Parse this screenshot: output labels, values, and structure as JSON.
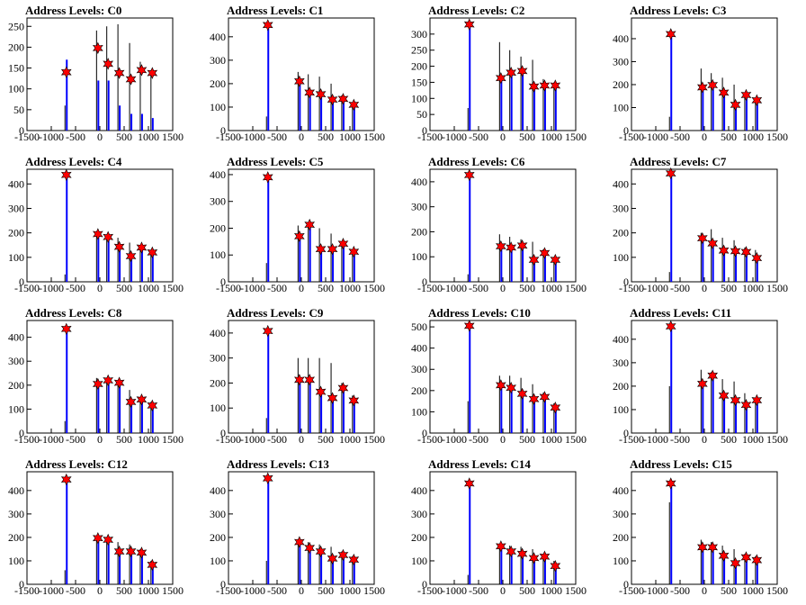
{
  "colors": {
    "primary_histogram": "#0000ff",
    "secondary_histogram": "#000000",
    "peak_marker": "#ff0000",
    "marker_outline": "#000000"
  },
  "chart_data": [
    {
      "type": "bar",
      "title": "Address Levels: C0",
      "xlim": [
        -1500,
        1500
      ],
      "ylim": [
        0,
        270
      ],
      "yticks": [
        0,
        50,
        100,
        150,
        200,
        250
      ],
      "xticks": [
        -1500,
        -1000,
        -500,
        0,
        500,
        1000,
        1500
      ],
      "peaks": [
        {
          "x": -690,
          "y": 140,
          "black": 60,
          "blue": 170
        },
        {
          "x": -40,
          "y": 198,
          "black": 240,
          "blue": 120
        },
        {
          "x": 170,
          "y": 160,
          "black": 250,
          "blue": 120
        },
        {
          "x": 400,
          "y": 138,
          "black": 255,
          "blue": 60
        },
        {
          "x": 640,
          "y": 123,
          "black": 210,
          "blue": 40
        },
        {
          "x": 860,
          "y": 145,
          "black": 165,
          "blue": 40
        },
        {
          "x": 1080,
          "y": 138,
          "black": 145,
          "blue": 30
        }
      ]
    },
    {
      "type": "bar",
      "title": "Address Levels: C1",
      "xlim": [
        -1500,
        1500
      ],
      "ylim": [
        0,
        480
      ],
      "yticks": [
        0,
        100,
        200,
        300,
        400
      ],
      "xticks": [
        -1500,
        -1000,
        -500,
        0,
        500,
        1000,
        1500
      ],
      "peaks": [
        {
          "x": -690,
          "y": 450,
          "black": 60,
          "blue": 450
        },
        {
          "x": -40,
          "y": 210,
          "black": 250,
          "blue": 210
        },
        {
          "x": 170,
          "y": 162,
          "black": 240,
          "blue": 160
        },
        {
          "x": 400,
          "y": 155,
          "black": 230,
          "blue": 155
        },
        {
          "x": 640,
          "y": 132,
          "black": 200,
          "blue": 130
        },
        {
          "x": 860,
          "y": 135,
          "black": 150,
          "blue": 135
        },
        {
          "x": 1080,
          "y": 110,
          "black": 120,
          "blue": 110
        }
      ]
    },
    {
      "type": "bar",
      "title": "Address Levels: C2",
      "xlim": [
        -1500,
        1500
      ],
      "ylim": [
        0,
        350
      ],
      "yticks": [
        0,
        50,
        100,
        150,
        200,
        250,
        300
      ],
      "xticks": [
        -1500,
        -1000,
        -500,
        0,
        500,
        1000,
        1500
      ],
      "peaks": [
        {
          "x": -690,
          "y": 330,
          "black": 70,
          "blue": 330
        },
        {
          "x": -40,
          "y": 163,
          "black": 275,
          "blue": 163
        },
        {
          "x": 170,
          "y": 180,
          "black": 250,
          "blue": 180
        },
        {
          "x": 400,
          "y": 185,
          "black": 230,
          "blue": 185
        },
        {
          "x": 640,
          "y": 137,
          "black": 220,
          "blue": 137
        },
        {
          "x": 860,
          "y": 140,
          "black": 160,
          "blue": 140
        },
        {
          "x": 1080,
          "y": 140,
          "black": 150,
          "blue": 140
        }
      ]
    },
    {
      "type": "bar",
      "title": "Address Levels: C3",
      "xlim": [
        -1500,
        1500
      ],
      "ylim": [
        0,
        490
      ],
      "yticks": [
        0,
        100,
        200,
        300,
        400
      ],
      "xticks": [
        -1500,
        -1000,
        -500,
        0,
        500,
        1000,
        1500
      ],
      "peaks": [
        {
          "x": -690,
          "y": 420,
          "black": 60,
          "blue": 420
        },
        {
          "x": -40,
          "y": 188,
          "black": 270,
          "blue": 188
        },
        {
          "x": 170,
          "y": 198,
          "black": 250,
          "blue": 198
        },
        {
          "x": 400,
          "y": 165,
          "black": 230,
          "blue": 165
        },
        {
          "x": 640,
          "y": 112,
          "black": 200,
          "blue": 112
        },
        {
          "x": 860,
          "y": 155,
          "black": 160,
          "blue": 155
        },
        {
          "x": 1080,
          "y": 132,
          "black": 140,
          "blue": 132
        }
      ]
    },
    {
      "type": "bar",
      "title": "Address Levels: C4",
      "xlim": [
        -1500,
        1500
      ],
      "ylim": [
        0,
        460
      ],
      "yticks": [
        0,
        100,
        200,
        300,
        400
      ],
      "xticks": [
        -1500,
        -1000,
        -500,
        0,
        500,
        1000,
        1500
      ],
      "peaks": [
        {
          "x": -690,
          "y": 437,
          "black": 30,
          "blue": 437
        },
        {
          "x": -40,
          "y": 195,
          "black": 200,
          "blue": 195
        },
        {
          "x": 170,
          "y": 183,
          "black": 190,
          "blue": 183
        },
        {
          "x": 400,
          "y": 143,
          "black": 180,
          "blue": 143
        },
        {
          "x": 640,
          "y": 105,
          "black": 160,
          "blue": 105
        },
        {
          "x": 860,
          "y": 140,
          "black": 145,
          "blue": 140
        },
        {
          "x": 1080,
          "y": 120,
          "black": 125,
          "blue": 120
        }
      ]
    },
    {
      "type": "bar",
      "title": "Address Levels: C5",
      "xlim": [
        -1500,
        1500
      ],
      "ylim": [
        0,
        420
      ],
      "yticks": [
        0,
        100,
        200,
        300,
        400
      ],
      "xticks": [
        -1500,
        -1000,
        -500,
        0,
        500,
        1000,
        1500
      ],
      "peaks": [
        {
          "x": -690,
          "y": 390,
          "black": 70,
          "blue": 390
        },
        {
          "x": -40,
          "y": 170,
          "black": 210,
          "blue": 170
        },
        {
          "x": 170,
          "y": 213,
          "black": 215,
          "blue": 213
        },
        {
          "x": 400,
          "y": 122,
          "black": 200,
          "blue": 122
        },
        {
          "x": 640,
          "y": 122,
          "black": 180,
          "blue": 122
        },
        {
          "x": 860,
          "y": 142,
          "black": 150,
          "blue": 142
        },
        {
          "x": 1080,
          "y": 112,
          "black": 120,
          "blue": 112
        }
      ]
    },
    {
      "type": "bar",
      "title": "Address Levels: C6",
      "xlim": [
        -1500,
        1500
      ],
      "ylim": [
        0,
        450
      ],
      "yticks": [
        0,
        100,
        200,
        300,
        400
      ],
      "xticks": [
        -1500,
        -1000,
        -500,
        0,
        500,
        1000,
        1500
      ],
      "peaks": [
        {
          "x": -690,
          "y": 427,
          "black": 30,
          "blue": 427
        },
        {
          "x": -40,
          "y": 142,
          "black": 190,
          "blue": 142
        },
        {
          "x": 170,
          "y": 137,
          "black": 180,
          "blue": 137
        },
        {
          "x": 400,
          "y": 145,
          "black": 170,
          "blue": 145
        },
        {
          "x": 640,
          "y": 88,
          "black": 160,
          "blue": 88
        },
        {
          "x": 860,
          "y": 115,
          "black": 130,
          "blue": 115
        },
        {
          "x": 1080,
          "y": 88,
          "black": 100,
          "blue": 88
        }
      ]
    },
    {
      "type": "bar",
      "title": "Address Levels: C7",
      "xlim": [
        -1500,
        1500
      ],
      "ylim": [
        0,
        460
      ],
      "yticks": [
        0,
        100,
        200,
        300,
        400
      ],
      "xticks": [
        -1500,
        -1000,
        -500,
        0,
        500,
        1000,
        1500
      ],
      "peaks": [
        {
          "x": -690,
          "y": 443,
          "black": 40,
          "blue": 443
        },
        {
          "x": -40,
          "y": 178,
          "black": 200,
          "blue": 178
        },
        {
          "x": 170,
          "y": 157,
          "black": 215,
          "blue": 157
        },
        {
          "x": 400,
          "y": 128,
          "black": 180,
          "blue": 128
        },
        {
          "x": 640,
          "y": 125,
          "black": 170,
          "blue": 125
        },
        {
          "x": 860,
          "y": 122,
          "black": 140,
          "blue": 122
        },
        {
          "x": 1080,
          "y": 97,
          "black": 130,
          "blue": 97
        }
      ]
    },
    {
      "type": "bar",
      "title": "Address Levels: C8",
      "xlim": [
        -1500,
        1500
      ],
      "ylim": [
        0,
        470
      ],
      "yticks": [
        0,
        100,
        200,
        300,
        400
      ],
      "xticks": [
        -1500,
        -1000,
        -500,
        0,
        500,
        1000,
        1500
      ],
      "peaks": [
        {
          "x": -690,
          "y": 435,
          "black": 50,
          "blue": 435
        },
        {
          "x": -40,
          "y": 205,
          "black": 230,
          "blue": 205
        },
        {
          "x": 170,
          "y": 220,
          "black": 230,
          "blue": 220
        },
        {
          "x": 400,
          "y": 210,
          "black": 215,
          "blue": 210
        },
        {
          "x": 640,
          "y": 130,
          "black": 180,
          "blue": 130
        },
        {
          "x": 860,
          "y": 140,
          "black": 150,
          "blue": 140
        },
        {
          "x": 1080,
          "y": 115,
          "black": 130,
          "blue": 115
        }
      ]
    },
    {
      "type": "bar",
      "title": "Address Levels: C9",
      "xlim": [
        -1500,
        1500
      ],
      "ylim": [
        0,
        450
      ],
      "yticks": [
        0,
        100,
        200,
        300,
        400
      ],
      "xticks": [
        -1500,
        -1000,
        -500,
        0,
        500,
        1000,
        1500
      ],
      "peaks": [
        {
          "x": -690,
          "y": 408,
          "black": 60,
          "blue": 408
        },
        {
          "x": -40,
          "y": 213,
          "black": 300,
          "blue": 213
        },
        {
          "x": 170,
          "y": 213,
          "black": 300,
          "blue": 213
        },
        {
          "x": 400,
          "y": 165,
          "black": 300,
          "blue": 165
        },
        {
          "x": 640,
          "y": 140,
          "black": 280,
          "blue": 140
        },
        {
          "x": 860,
          "y": 180,
          "black": 200,
          "blue": 180
        },
        {
          "x": 1080,
          "y": 130,
          "black": 150,
          "blue": 130
        }
      ]
    },
    {
      "type": "bar",
      "title": "Address Levels: C10",
      "xlim": [
        -1500,
        1500
      ],
      "ylim": [
        0,
        530
      ],
      "yticks": [
        0,
        100,
        200,
        300,
        400,
        500
      ],
      "xticks": [
        -1500,
        -1000,
        -500,
        0,
        500,
        1000,
        1500
      ],
      "peaks": [
        {
          "x": -690,
          "y": 505,
          "black": 150,
          "blue": 505
        },
        {
          "x": -40,
          "y": 225,
          "black": 270,
          "blue": 225
        },
        {
          "x": 170,
          "y": 213,
          "black": 270,
          "blue": 213
        },
        {
          "x": 400,
          "y": 185,
          "black": 260,
          "blue": 185
        },
        {
          "x": 640,
          "y": 160,
          "black": 230,
          "blue": 160
        },
        {
          "x": 860,
          "y": 170,
          "black": 190,
          "blue": 170
        },
        {
          "x": 1080,
          "y": 120,
          "black": 140,
          "blue": 120
        }
      ]
    },
    {
      "type": "bar",
      "title": "Address Levels: C11",
      "xlim": [
        -1500,
        1500
      ],
      "ylim": [
        0,
        480
      ],
      "yticks": [
        0,
        100,
        200,
        300,
        400
      ],
      "xticks": [
        -1500,
        -1000,
        -500,
        0,
        500,
        1000,
        1500
      ],
      "peaks": [
        {
          "x": -690,
          "y": 455,
          "black": 200,
          "blue": 455
        },
        {
          "x": -40,
          "y": 210,
          "black": 270,
          "blue": 210
        },
        {
          "x": 170,
          "y": 245,
          "black": 260,
          "blue": 245
        },
        {
          "x": 400,
          "y": 160,
          "black": 230,
          "blue": 160
        },
        {
          "x": 640,
          "y": 140,
          "black": 220,
          "blue": 140
        },
        {
          "x": 860,
          "y": 120,
          "black": 170,
          "blue": 120
        },
        {
          "x": 1080,
          "y": 140,
          "black": 150,
          "blue": 140
        }
      ]
    },
    {
      "type": "bar",
      "title": "Address Levels: C12",
      "xlim": [
        -1500,
        1500
      ],
      "ylim": [
        0,
        480
      ],
      "yticks": [
        0,
        100,
        200,
        300,
        400
      ],
      "xticks": [
        -1500,
        -1000,
        -500,
        0,
        500,
        1000,
        1500
      ],
      "peaks": [
        {
          "x": -690,
          "y": 447,
          "black": 60,
          "blue": 447
        },
        {
          "x": -40,
          "y": 197,
          "black": 200,
          "blue": 197
        },
        {
          "x": 170,
          "y": 190,
          "black": 195,
          "blue": 190
        },
        {
          "x": 400,
          "y": 140,
          "black": 180,
          "blue": 140
        },
        {
          "x": 640,
          "y": 140,
          "black": 170,
          "blue": 140
        },
        {
          "x": 860,
          "y": 135,
          "black": 150,
          "blue": 135
        },
        {
          "x": 1080,
          "y": 83,
          "black": 100,
          "blue": 83
        }
      ]
    },
    {
      "type": "bar",
      "title": "Address Levels: C13",
      "xlim": [
        -1500,
        1500
      ],
      "ylim": [
        0,
        480
      ],
      "yticks": [
        0,
        100,
        200,
        300,
        400
      ],
      "xticks": [
        -1500,
        -1000,
        -500,
        0,
        500,
        1000,
        1500
      ],
      "peaks": [
        {
          "x": -690,
          "y": 452,
          "black": 100,
          "blue": 452
        },
        {
          "x": -40,
          "y": 180,
          "black": 190,
          "blue": 180
        },
        {
          "x": 170,
          "y": 155,
          "black": 180,
          "blue": 155
        },
        {
          "x": 400,
          "y": 140,
          "black": 170,
          "blue": 140
        },
        {
          "x": 640,
          "y": 110,
          "black": 160,
          "blue": 110
        },
        {
          "x": 860,
          "y": 125,
          "black": 140,
          "blue": 125
        },
        {
          "x": 1080,
          "y": 105,
          "black": 120,
          "blue": 105
        }
      ]
    },
    {
      "type": "bar",
      "title": "Address Levels: C14",
      "xlim": [
        -1500,
        1500
      ],
      "ylim": [
        0,
        480
      ],
      "yticks": [
        0,
        100,
        200,
        300,
        400
      ],
      "xticks": [
        -1500,
        -1000,
        -500,
        0,
        500,
        1000,
        1500
      ],
      "peaks": [
        {
          "x": -690,
          "y": 430,
          "black": 40,
          "blue": 430
        },
        {
          "x": -40,
          "y": 162,
          "black": 170,
          "blue": 162
        },
        {
          "x": 170,
          "y": 140,
          "black": 165,
          "blue": 140
        },
        {
          "x": 400,
          "y": 130,
          "black": 160,
          "blue": 130
        },
        {
          "x": 640,
          "y": 112,
          "black": 150,
          "blue": 112
        },
        {
          "x": 860,
          "y": 118,
          "black": 130,
          "blue": 118
        },
        {
          "x": 1080,
          "y": 78,
          "black": 100,
          "blue": 78
        }
      ]
    },
    {
      "type": "bar",
      "title": "Address Levels: C15",
      "xlim": [
        -1500,
        1500
      ],
      "ylim": [
        0,
        480
      ],
      "yticks": [
        0,
        100,
        200,
        300,
        400
      ],
      "xticks": [
        -1500,
        -1000,
        -500,
        0,
        500,
        1000,
        1500
      ],
      "peaks": [
        {
          "x": -690,
          "y": 430,
          "black": 350,
          "blue": 430
        },
        {
          "x": -40,
          "y": 158,
          "black": 190,
          "blue": 158
        },
        {
          "x": 170,
          "y": 158,
          "black": 180,
          "blue": 158
        },
        {
          "x": 400,
          "y": 122,
          "black": 165,
          "blue": 122
        },
        {
          "x": 640,
          "y": 90,
          "black": 150,
          "blue": 90
        },
        {
          "x": 860,
          "y": 115,
          "black": 130,
          "blue": 115
        },
        {
          "x": 1080,
          "y": 103,
          "black": 120,
          "blue": 103
        }
      ]
    }
  ]
}
